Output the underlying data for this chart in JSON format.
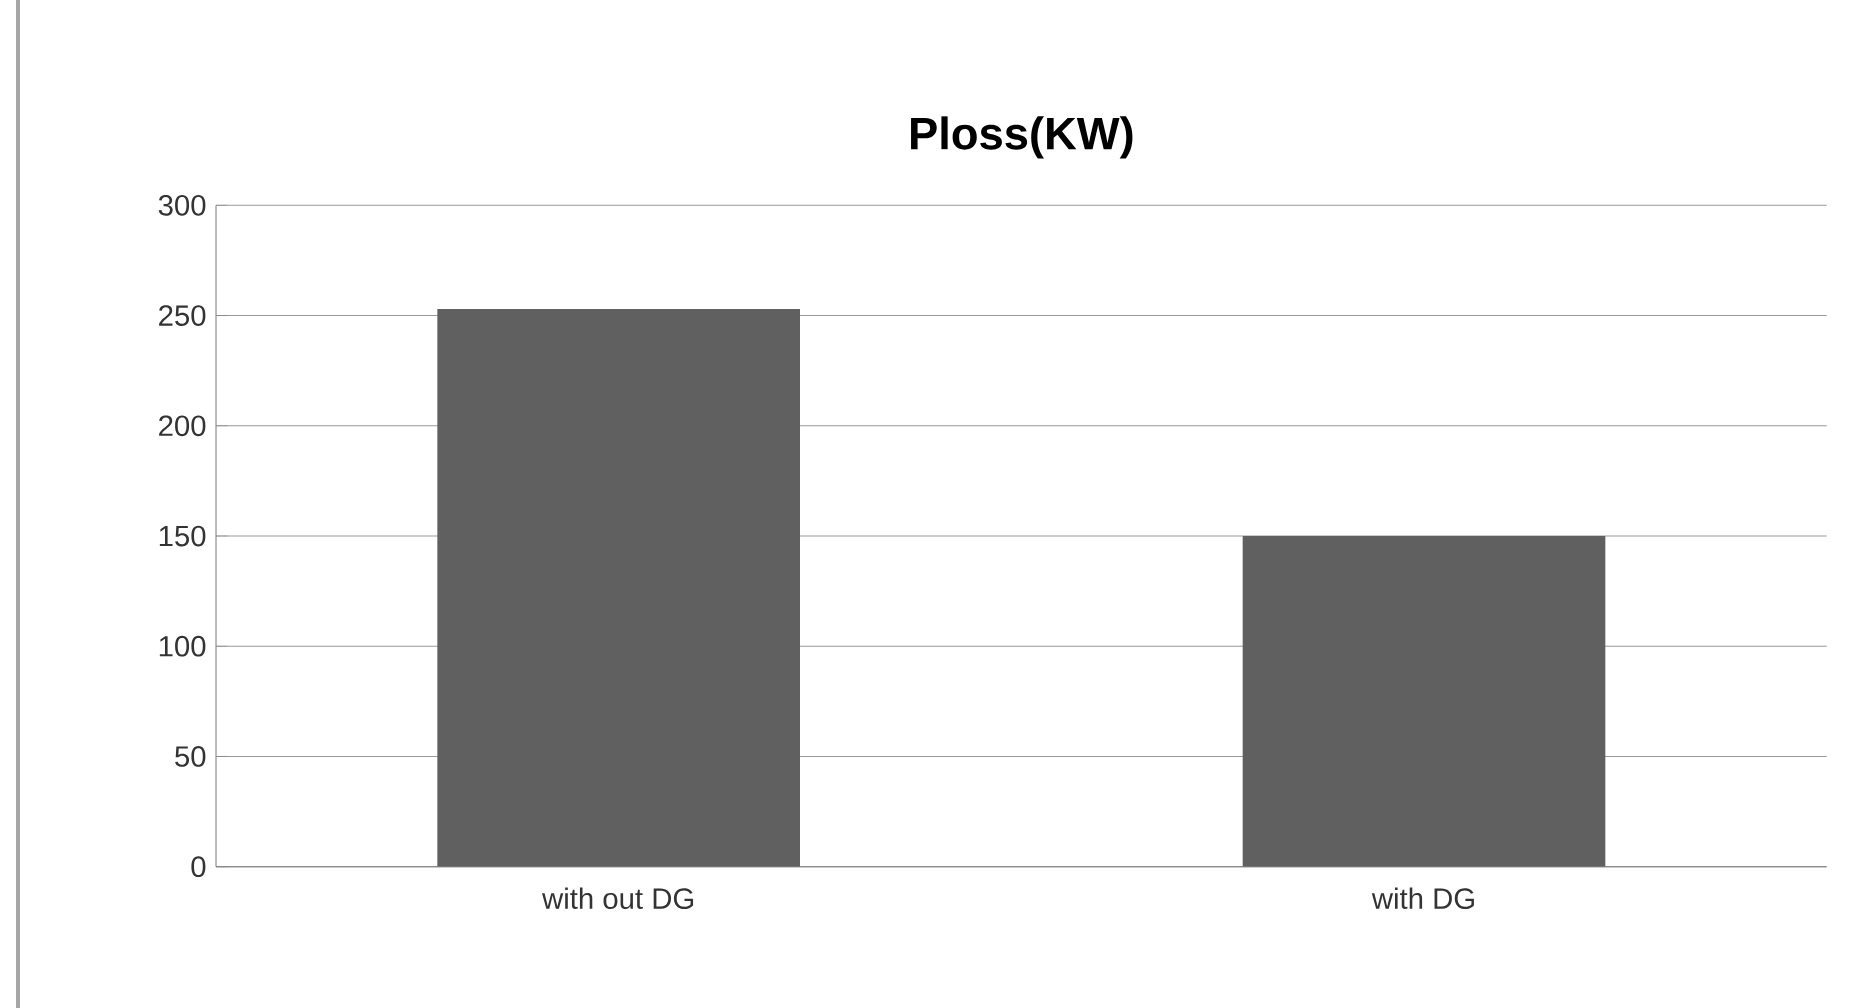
{
  "chart_data": {
    "type": "bar",
    "title": "Ploss(KW)",
    "categories": [
      "with out DG",
      "with DG"
    ],
    "values": [
      253,
      150
    ],
    "color": "#606060",
    "ylim": [
      0,
      300
    ],
    "yticks": [
      0,
      50,
      100,
      150,
      200,
      250,
      300
    ],
    "grid": "y"
  }
}
